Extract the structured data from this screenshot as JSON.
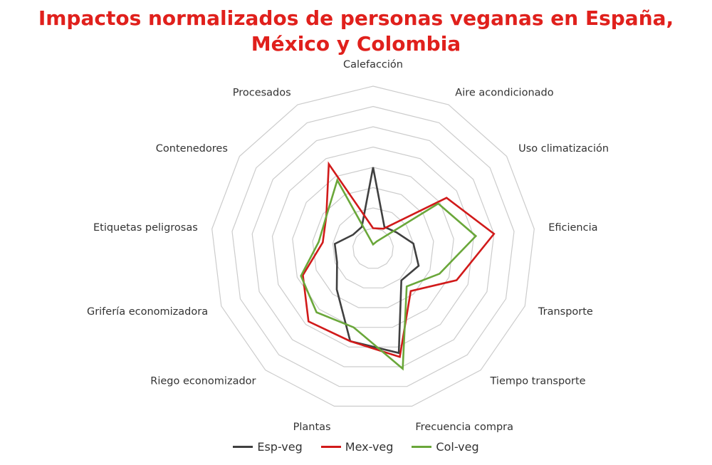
{
  "chart_data": {
    "type": "radar",
    "title_line1": "Impactos normalizados de personas veganas en España,",
    "title_line2": "México y Colombia",
    "axes": [
      "Calefacción",
      "Aire acondicionado",
      "Uso climatización",
      "Eficiencia",
      "Transporte",
      "Tiempo transporte",
      "Frecuencia compra",
      "Plantas",
      "Riego economizador",
      "Grifería economizadora",
      "Etiquetas peligrosas",
      "Contenedores",
      "Procesados"
    ],
    "rings": 8,
    "range": [
      0,
      8
    ],
    "grid": true,
    "legend_position": "bottom",
    "series": [
      {
        "name": "Esp-veg",
        "color": "#404040",
        "values": [
          4.0,
          1.2,
          1.4,
          2.0,
          2.4,
          2.1,
          5.3,
          4.7,
          2.7,
          1.9,
          1.9,
          1.2,
          1.2
        ]
      },
      {
        "name": "Mex-veg",
        "color": "#d11a1a",
        "values": [
          1.0,
          1.1,
          4.4,
          6.0,
          4.4,
          2.8,
          5.5,
          4.7,
          4.8,
          3.7,
          2.5,
          2.8,
          4.7
        ]
      },
      {
        "name": "Col-veg",
        "color": "#6aa73a",
        "values": [
          0.2,
          0.4,
          3.9,
          5.1,
          3.5,
          2.5,
          6.1,
          4.0,
          4.2,
          3.8,
          2.7,
          2.8,
          3.8
        ]
      }
    ]
  }
}
